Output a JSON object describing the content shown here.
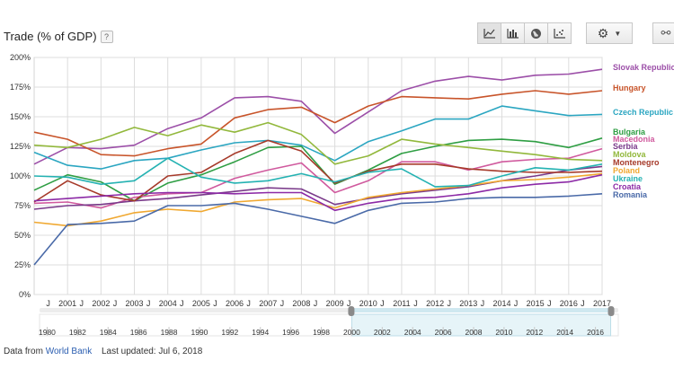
{
  "chart_data": {
    "type": "line",
    "title": "Trade (% of GDP)",
    "ylim": [
      0,
      200
    ],
    "yticks": [
      "0%",
      "25%",
      "50%",
      "75%",
      "100%",
      "125%",
      "150%",
      "175%",
      "200%"
    ],
    "ytick_values": [
      0,
      25,
      50,
      75,
      100,
      125,
      150,
      175,
      200
    ],
    "xlim": [
      2000,
      2017
    ],
    "xticks": [
      "J",
      "2001",
      "J",
      "2002",
      "J",
      "2003",
      "J",
      "2004",
      "J",
      "2005",
      "J",
      "2006",
      "J",
      "2007",
      "J",
      "2008",
      "J",
      "2009",
      "J",
      "2010",
      "J",
      "2011",
      "J",
      "2012",
      "J",
      "2013",
      "J",
      "2014",
      "J",
      "2015",
      "J",
      "2016",
      "J",
      "2017"
    ],
    "x": [
      2000,
      2001,
      2002,
      2003,
      2004,
      2005,
      2006,
      2007,
      2008,
      2009,
      2010,
      2011,
      2012,
      2013,
      2014,
      2015,
      2016,
      2017
    ],
    "grid": true,
    "legend": "right",
    "series": [
      {
        "name": "Slovak Republic",
        "color": "#9c4fa8",
        "values": [
          110,
          124,
          123,
          126,
          140,
          149,
          166,
          167,
          163,
          136,
          154,
          172,
          180,
          184,
          181,
          185,
          186,
          190
        ]
      },
      {
        "name": "Hungary",
        "color": "#c8542a",
        "values": [
          137,
          131,
          118,
          117,
          123,
          127,
          149,
          156,
          158,
          145,
          159,
          167,
          166,
          165,
          169,
          172,
          169,
          172
        ]
      },
      {
        "name": "Czech Republic",
        "color": "#2ba6c1",
        "values": [
          120,
          109,
          106,
          113,
          115,
          122,
          128,
          130,
          126,
          113,
          129,
          138,
          148,
          148,
          159,
          155,
          151,
          152
        ]
      },
      {
        "name": "Bulgaria",
        "color": "#2e9e43",
        "values": [
          88,
          101,
          95,
          79,
          94,
          101,
          112,
          124,
          125,
          93,
          105,
          119,
          125,
          130,
          131,
          129,
          124,
          132
        ]
      },
      {
        "name": "Macedonia",
        "color": "#d05a9e",
        "values": [
          77,
          78,
          73,
          82,
          85,
          86,
          98,
          105,
          111,
          86,
          96,
          112,
          112,
          105,
          112,
          114,
          115,
          123
        ]
      },
      {
        "name": "Serbia",
        "color": "#7a3a8a",
        "values": [
          72,
          75,
          76,
          79,
          81,
          84,
          87,
          90,
          89,
          76,
          81,
          85,
          88,
          91,
          96,
          100,
          105,
          108
        ]
      },
      {
        "name": "Moldova",
        "color": "#92b83c",
        "values": [
          126,
          124,
          131,
          141,
          134,
          143,
          137,
          145,
          135,
          110,
          117,
          131,
          127,
          124,
          121,
          118,
          114,
          113
        ]
      },
      {
        "name": "Montenegro",
        "color": "#a63a2a",
        "values": [
          78,
          96,
          84,
          79,
          100,
          103,
          119,
          130,
          121,
          94,
          104,
          110,
          110,
          106,
          104,
          103,
          103,
          104
        ]
      },
      {
        "name": "Poland",
        "color": "#f0a830",
        "values": [
          61,
          58,
          62,
          69,
          72,
          70,
          78,
          80,
          81,
          73,
          82,
          86,
          89,
          92,
          96,
          97,
          99,
          102
        ]
      },
      {
        "name": "Ukraine",
        "color": "#24b2b2",
        "values": [
          100,
          99,
          93,
          96,
          115,
          99,
          94,
          96,
          102,
          95,
          103,
          106,
          91,
          92,
          100,
          107,
          105,
          110
        ]
      },
      {
        "name": "Croatia",
        "color": "#8c2aa6",
        "values": [
          79,
          81,
          83,
          85,
          86,
          86,
          85,
          86,
          86,
          71,
          77,
          81,
          82,
          85,
          90,
          93,
          95,
          101
        ]
      },
      {
        "name": "Romania",
        "color": "#4a6aa8",
        "values": [
          25,
          59,
          60,
          62,
          75,
          75,
          77,
          72,
          66,
          60,
          71,
          77,
          78,
          81,
          82,
          82,
          83,
          85
        ]
      }
    ]
  },
  "header": {
    "help_label": "?"
  },
  "toolbar": {
    "line_icon": "line-chart-icon",
    "bar_icon": "bar-chart-icon",
    "map_icon": "globe-icon",
    "scatter_icon": "scatter-chart-icon",
    "settings_icon": "gear-icon",
    "link_icon": "link-icon"
  },
  "timeline": {
    "years": [
      "1980",
      "1982",
      "1984",
      "1986",
      "1988",
      "1990",
      "1992",
      "1994",
      "1996",
      "1998",
      "2000",
      "2002",
      "2004",
      "2006",
      "2008",
      "2010",
      "2012",
      "2014",
      "2016"
    ],
    "selection": [
      2000,
      2017
    ]
  },
  "footer": {
    "source_prefix": "Data from",
    "source_link": "World Bank",
    "updated": "Last updated: Jul 6, 2018"
  }
}
